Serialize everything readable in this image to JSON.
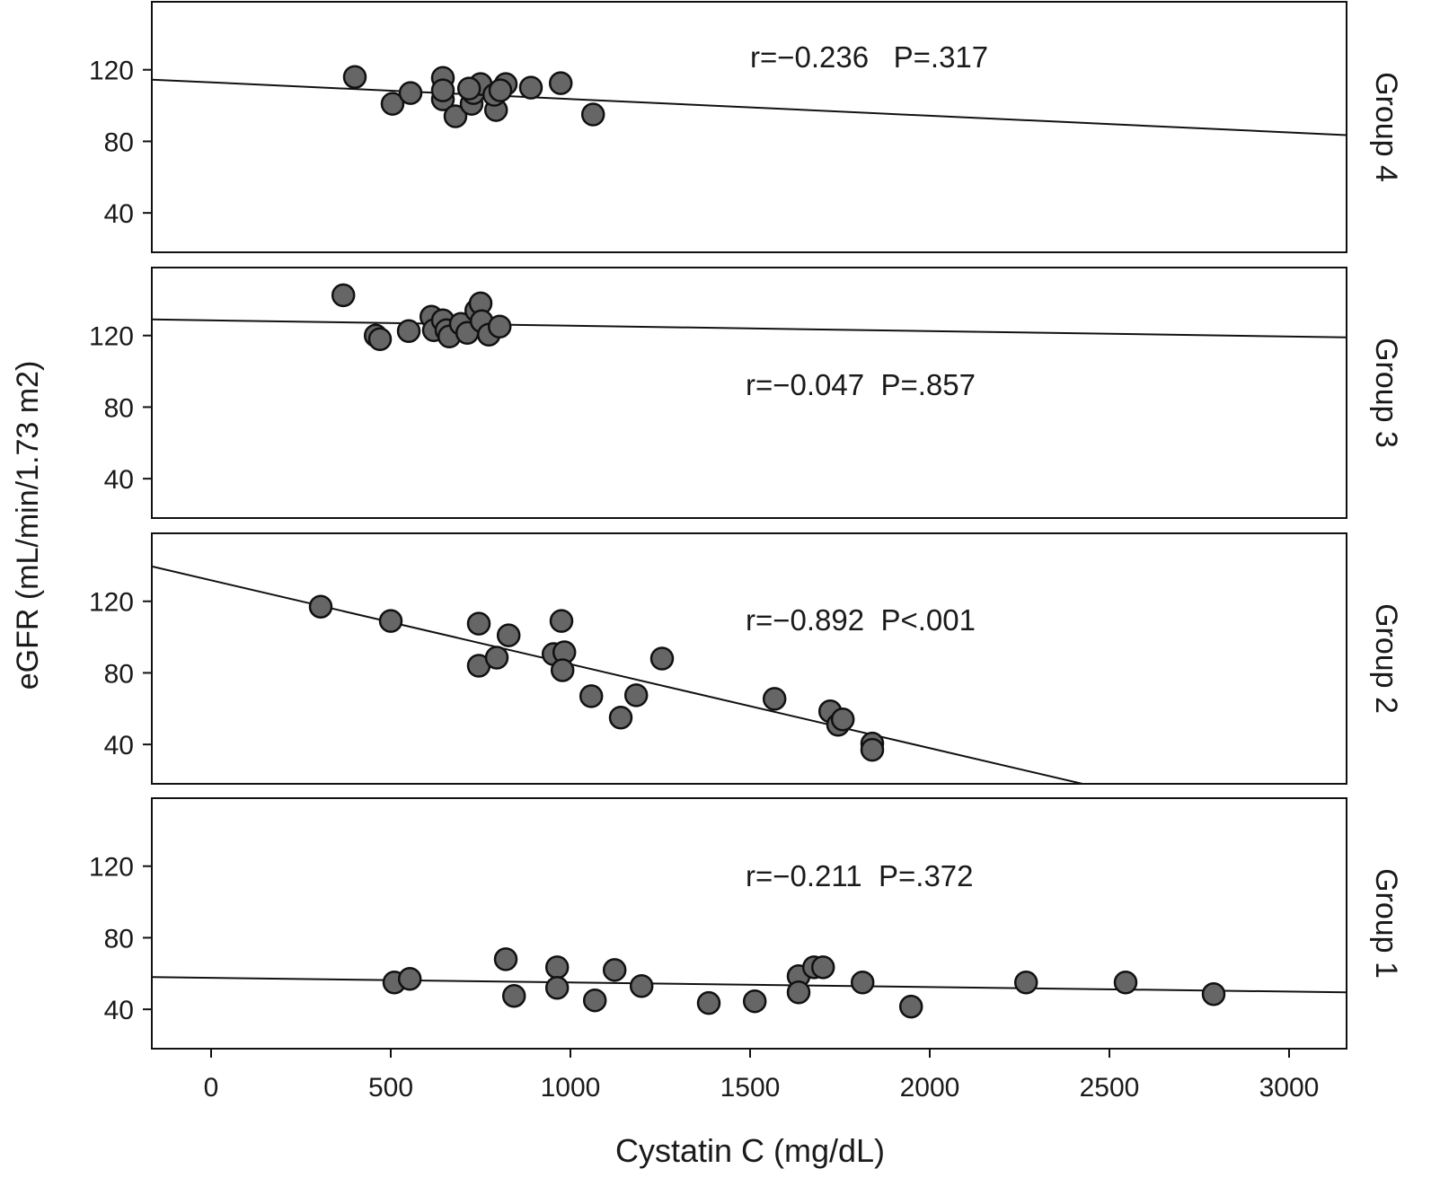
{
  "chart_data": {
    "type": "scatter",
    "xlabel": "Cystatin C (mg/dL)",
    "ylabel": "eGFR (mL/min/1.73 m2)",
    "xlim": [
      -165,
      3160
    ],
    "ylim": [
      18,
      158
    ],
    "xticks": [
      0,
      500,
      1000,
      1500,
      2000,
      2500,
      3000
    ],
    "yticks": [
      40,
      80,
      120
    ],
    "grid": false,
    "colors": {
      "point_fill": "#666666",
      "point_stroke": "#111111",
      "line": "#111111"
    },
    "panels": [
      {
        "name": "Group 4",
        "annotation": "r=−0.236   P=.317",
        "fit_line": {
          "x": [
            -165,
            3160
          ],
          "y": [
            114.5,
            83.5
          ]
        },
        "points": [
          [
            400,
            116
          ],
          [
            505,
            101
          ],
          [
            555,
            107
          ],
          [
            645,
            115.5
          ],
          [
            645,
            103.5
          ],
          [
            645,
            108.5
          ],
          [
            680,
            94
          ],
          [
            725,
            101
          ],
          [
            730,
            107
          ],
          [
            750,
            112
          ],
          [
            718,
            109.5
          ],
          [
            793,
            97.5
          ],
          [
            788,
            106
          ],
          [
            820,
            112
          ],
          [
            805,
            108.5
          ],
          [
            890,
            110
          ],
          [
            973,
            112.5
          ],
          [
            1063,
            95
          ]
        ]
      },
      {
        "name": "Group 3",
        "annotation": "r=−0.047  P=.857",
        "fit_line": {
          "x": [
            -165,
            3160
          ],
          "y": [
            129,
            119
          ]
        },
        "points": [
          [
            368,
            142.5
          ],
          [
            458,
            120
          ],
          [
            470,
            118
          ],
          [
            550,
            122.5
          ],
          [
            613,
            130.5
          ],
          [
            620,
            123
          ],
          [
            645,
            128.5
          ],
          [
            655,
            123
          ],
          [
            663,
            119.5
          ],
          [
            695,
            126.5
          ],
          [
            713,
            121.5
          ],
          [
            738,
            134
          ],
          [
            750,
            138
          ],
          [
            753,
            128
          ],
          [
            773,
            120.5
          ],
          [
            803,
            125
          ]
        ]
      },
      {
        "name": "Group 2",
        "annotation": "r=−0.892  P<.001",
        "fit_line": {
          "x": [
            -165,
            2425
          ],
          "y": [
            139.5,
            18
          ]
        },
        "points": [
          [
            305,
            117
          ],
          [
            500,
            109
          ],
          [
            745,
            107.5
          ],
          [
            745,
            84
          ],
          [
            795,
            88.5
          ],
          [
            828,
            101
          ],
          [
            953,
            90.5
          ],
          [
            975,
            109
          ],
          [
            983,
            91.5
          ],
          [
            978,
            81.5
          ],
          [
            1058,
            67
          ],
          [
            1140,
            55
          ],
          [
            1183,
            67.5
          ],
          [
            1255,
            88
          ],
          [
            1568,
            65.5
          ],
          [
            1723,
            58.5
          ],
          [
            1745,
            51
          ],
          [
            1758,
            54
          ],
          [
            1840,
            40.5
          ],
          [
            1840,
            37
          ]
        ]
      },
      {
        "name": "Group 1",
        "annotation": "r=−0.211  P=.372",
        "fit_line": {
          "x": [
            -165,
            3160
          ],
          "y": [
            58,
            49.5
          ]
        },
        "points": [
          [
            510,
            55
          ],
          [
            553,
            57
          ],
          [
            820,
            68
          ],
          [
            843,
            47.5
          ],
          [
            963,
            63.5
          ],
          [
            963,
            52
          ],
          [
            1068,
            45
          ],
          [
            1123,
            62
          ],
          [
            1198,
            53
          ],
          [
            1385,
            43.5
          ],
          [
            1513,
            44.5
          ],
          [
            1635,
            58.5
          ],
          [
            1635,
            49.5
          ],
          [
            1678,
            63.5
          ],
          [
            1703,
            63.5
          ],
          [
            1813,
            55
          ],
          [
            1948,
            41.5
          ],
          [
            2268,
            55
          ],
          [
            2545,
            55
          ],
          [
            2790,
            48.5
          ]
        ]
      }
    ]
  }
}
